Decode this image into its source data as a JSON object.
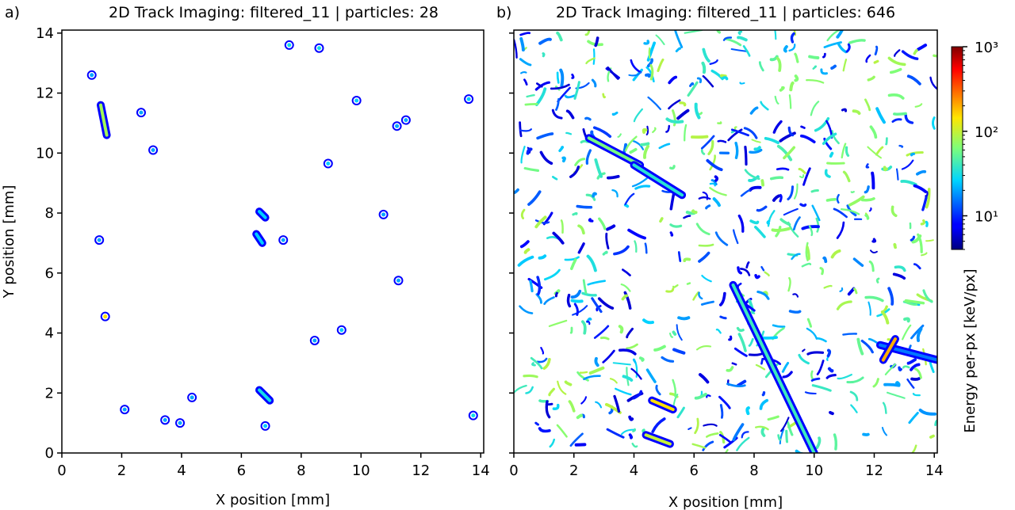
{
  "figure": {
    "panels": [
      {
        "label": "a)",
        "title": "2D Track Imaging: filtered_11 | particles: 28",
        "xlabel": "X position [mm]",
        "ylabel": "Y position [mm]",
        "xticks": [
          "0",
          "2",
          "4",
          "6",
          "8",
          "10",
          "12",
          "14"
        ],
        "yticks": [
          "0",
          "2",
          "4",
          "6",
          "8",
          "10",
          "12",
          "14"
        ]
      },
      {
        "label": "b)",
        "title": "2D Track Imaging: filtered_11 | particles: 646",
        "xlabel": "X position [mm]",
        "xticks": [
          "0",
          "2",
          "4",
          "6",
          "8",
          "10",
          "12",
          "14"
        ]
      }
    ],
    "colorbar": {
      "label": "Energy per-px [keV/px]",
      "scale": "log",
      "ticks": [
        "10¹",
        "10²",
        "10³"
      ],
      "colormap": "jet",
      "range_keV": [
        4,
        1000
      ]
    }
  },
  "chart_data": [
    {
      "type": "heatmap",
      "title": "2D Track Imaging: filtered_11 | particles: 28",
      "xlabel": "X position [mm]",
      "ylabel": "Y position [mm]",
      "xlim": [
        0,
        14.1
      ],
      "ylim": [
        0,
        14.1
      ],
      "particle_count": 28,
      "colorscale": "log (jet)",
      "tracks": [
        {
          "x": [
            1.3,
            1.5
          ],
          "y": [
            11.6,
            10.6
          ],
          "energy": 80
        },
        {
          "x": [
            1.0
          ],
          "y": [
            12.6
          ],
          "energy": 20
        },
        {
          "x": [
            2.65
          ],
          "y": [
            11.35
          ],
          "energy": 20
        },
        {
          "x": [
            3.05
          ],
          "y": [
            10.1
          ],
          "energy": 20
        },
        {
          "x": [
            7.6
          ],
          "y": [
            13.6
          ],
          "energy": 30
        },
        {
          "x": [
            8.6
          ],
          "y": [
            13.5
          ],
          "energy": 30
        },
        {
          "x": [
            9.85
          ],
          "y": [
            11.75
          ],
          "energy": 25
        },
        {
          "x": [
            8.9
          ],
          "y": [
            9.65
          ],
          "energy": 25
        },
        {
          "x": [
            11.2
          ],
          "y": [
            10.9
          ],
          "energy": 20
        },
        {
          "x": [
            11.5
          ],
          "y": [
            11.1
          ],
          "energy": 20
        },
        {
          "x": [
            13.6
          ],
          "y": [
            11.8
          ],
          "energy": 25
        },
        {
          "x": [
            6.6,
            6.8
          ],
          "y": [
            8.05,
            7.85
          ],
          "energy": 25
        },
        {
          "x": [
            6.5,
            6.7
          ],
          "y": [
            7.3,
            7.0
          ],
          "energy": 25
        },
        {
          "x": [
            7.4
          ],
          "y": [
            7.1
          ],
          "energy": 20
        },
        {
          "x": [
            10.75
          ],
          "y": [
            7.95
          ],
          "energy": 20
        },
        {
          "x": [
            1.25
          ],
          "y": [
            7.1
          ],
          "energy": 20
        },
        {
          "x": [
            11.25
          ],
          "y": [
            5.75
          ],
          "energy": 20
        },
        {
          "x": [
            1.45
          ],
          "y": [
            4.55
          ],
          "energy": 150
        },
        {
          "x": [
            8.45
          ],
          "y": [
            3.75
          ],
          "energy": 20
        },
        {
          "x": [
            9.35
          ],
          "y": [
            4.1
          ],
          "energy": 25
        },
        {
          "x": [
            6.6,
            6.95
          ],
          "y": [
            2.1,
            1.75
          ],
          "energy": 30
        },
        {
          "x": [
            4.35
          ],
          "y": [
            1.85
          ],
          "energy": 20
        },
        {
          "x": [
            6.8
          ],
          "y": [
            0.9
          ],
          "energy": 25
        },
        {
          "x": [
            2.1
          ],
          "y": [
            1.45
          ],
          "energy": 20
        },
        {
          "x": [
            3.45
          ],
          "y": [
            1.1
          ],
          "energy": 20
        },
        {
          "x": [
            3.95
          ],
          "y": [
            1.0
          ],
          "energy": 20
        },
        {
          "x": [
            13.75
          ],
          "y": [
            1.25
          ],
          "energy": 30
        }
      ]
    },
    {
      "type": "heatmap",
      "title": "2D Track Imaging: filtered_11 | particles: 646",
      "xlabel": "X position [mm]",
      "xlim": [
        0,
        14.1
      ],
      "ylim": [
        0,
        14.1
      ],
      "particle_count": 646,
      "colorscale": "log (jet)",
      "prominent_tracks": [
        {
          "x": [
            7.3,
            10.0
          ],
          "y": [
            5.6,
            0.0
          ],
          "energy": 40
        },
        {
          "x": [
            12.2,
            14.1
          ],
          "y": [
            3.6,
            3.1
          ],
          "energy": 15
        },
        {
          "x": [
            12.3,
            12.7
          ],
          "y": [
            3.1,
            3.8
          ],
          "energy": 200
        },
        {
          "x": [
            4.6,
            5.3
          ],
          "y": [
            1.75,
            1.45
          ],
          "energy": 150
        },
        {
          "x": [
            2.5,
            4.2
          ],
          "y": [
            10.5,
            9.6
          ],
          "energy": 60
        },
        {
          "x": [
            4.0,
            5.6
          ],
          "y": [
            9.6,
            8.6
          ],
          "energy": 35
        },
        {
          "x": [
            4.4,
            5.2
          ],
          "y": [
            0.6,
            0.3
          ],
          "energy": 100
        }
      ]
    }
  ]
}
